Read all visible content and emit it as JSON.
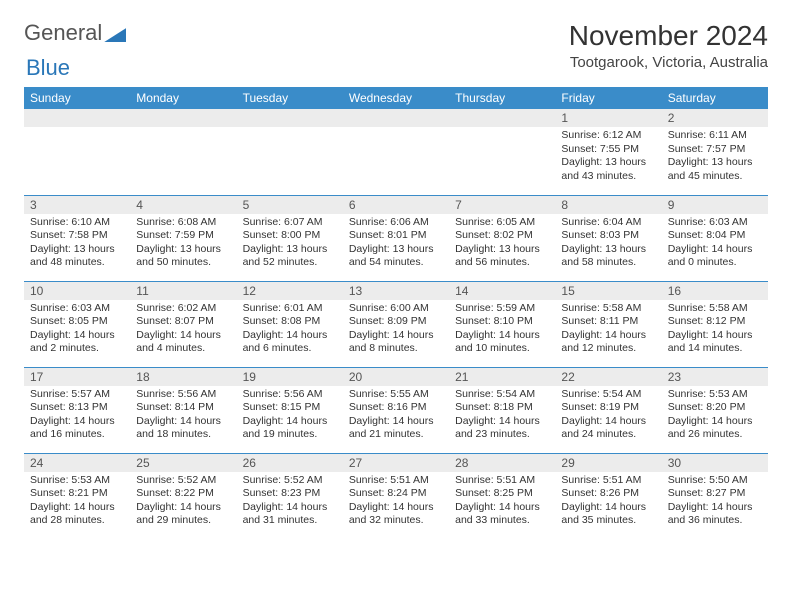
{
  "logo": {
    "part1": "General",
    "part2": "Blue"
  },
  "title": "November 2024",
  "location": "Tootgarook, Victoria, Australia",
  "colors": {
    "header_bg": "#3a8cc9",
    "header_text": "#ffffff",
    "daynum_bg": "#ececec",
    "border": "#3a8cc9",
    "accent": "#2a77b8"
  },
  "weekdays": [
    "Sunday",
    "Monday",
    "Tuesday",
    "Wednesday",
    "Thursday",
    "Friday",
    "Saturday"
  ],
  "weeks": [
    [
      {
        "blank": true
      },
      {
        "blank": true
      },
      {
        "blank": true
      },
      {
        "blank": true
      },
      {
        "blank": true
      },
      {
        "day": "1",
        "sunrise": "Sunrise: 6:12 AM",
        "sunset": "Sunset: 7:55 PM",
        "daylight": "Daylight: 13 hours and 43 minutes."
      },
      {
        "day": "2",
        "sunrise": "Sunrise: 6:11 AM",
        "sunset": "Sunset: 7:57 PM",
        "daylight": "Daylight: 13 hours and 45 minutes."
      }
    ],
    [
      {
        "day": "3",
        "sunrise": "Sunrise: 6:10 AM",
        "sunset": "Sunset: 7:58 PM",
        "daylight": "Daylight: 13 hours and 48 minutes."
      },
      {
        "day": "4",
        "sunrise": "Sunrise: 6:08 AM",
        "sunset": "Sunset: 7:59 PM",
        "daylight": "Daylight: 13 hours and 50 minutes."
      },
      {
        "day": "5",
        "sunrise": "Sunrise: 6:07 AM",
        "sunset": "Sunset: 8:00 PM",
        "daylight": "Daylight: 13 hours and 52 minutes."
      },
      {
        "day": "6",
        "sunrise": "Sunrise: 6:06 AM",
        "sunset": "Sunset: 8:01 PM",
        "daylight": "Daylight: 13 hours and 54 minutes."
      },
      {
        "day": "7",
        "sunrise": "Sunrise: 6:05 AM",
        "sunset": "Sunset: 8:02 PM",
        "daylight": "Daylight: 13 hours and 56 minutes."
      },
      {
        "day": "8",
        "sunrise": "Sunrise: 6:04 AM",
        "sunset": "Sunset: 8:03 PM",
        "daylight": "Daylight: 13 hours and 58 minutes."
      },
      {
        "day": "9",
        "sunrise": "Sunrise: 6:03 AM",
        "sunset": "Sunset: 8:04 PM",
        "daylight": "Daylight: 14 hours and 0 minutes."
      }
    ],
    [
      {
        "day": "10",
        "sunrise": "Sunrise: 6:03 AM",
        "sunset": "Sunset: 8:05 PM",
        "daylight": "Daylight: 14 hours and 2 minutes."
      },
      {
        "day": "11",
        "sunrise": "Sunrise: 6:02 AM",
        "sunset": "Sunset: 8:07 PM",
        "daylight": "Daylight: 14 hours and 4 minutes."
      },
      {
        "day": "12",
        "sunrise": "Sunrise: 6:01 AM",
        "sunset": "Sunset: 8:08 PM",
        "daylight": "Daylight: 14 hours and 6 minutes."
      },
      {
        "day": "13",
        "sunrise": "Sunrise: 6:00 AM",
        "sunset": "Sunset: 8:09 PM",
        "daylight": "Daylight: 14 hours and 8 minutes."
      },
      {
        "day": "14",
        "sunrise": "Sunrise: 5:59 AM",
        "sunset": "Sunset: 8:10 PM",
        "daylight": "Daylight: 14 hours and 10 minutes."
      },
      {
        "day": "15",
        "sunrise": "Sunrise: 5:58 AM",
        "sunset": "Sunset: 8:11 PM",
        "daylight": "Daylight: 14 hours and 12 minutes."
      },
      {
        "day": "16",
        "sunrise": "Sunrise: 5:58 AM",
        "sunset": "Sunset: 8:12 PM",
        "daylight": "Daylight: 14 hours and 14 minutes."
      }
    ],
    [
      {
        "day": "17",
        "sunrise": "Sunrise: 5:57 AM",
        "sunset": "Sunset: 8:13 PM",
        "daylight": "Daylight: 14 hours and 16 minutes."
      },
      {
        "day": "18",
        "sunrise": "Sunrise: 5:56 AM",
        "sunset": "Sunset: 8:14 PM",
        "daylight": "Daylight: 14 hours and 18 minutes."
      },
      {
        "day": "19",
        "sunrise": "Sunrise: 5:56 AM",
        "sunset": "Sunset: 8:15 PM",
        "daylight": "Daylight: 14 hours and 19 minutes."
      },
      {
        "day": "20",
        "sunrise": "Sunrise: 5:55 AM",
        "sunset": "Sunset: 8:16 PM",
        "daylight": "Daylight: 14 hours and 21 minutes."
      },
      {
        "day": "21",
        "sunrise": "Sunrise: 5:54 AM",
        "sunset": "Sunset: 8:18 PM",
        "daylight": "Daylight: 14 hours and 23 minutes."
      },
      {
        "day": "22",
        "sunrise": "Sunrise: 5:54 AM",
        "sunset": "Sunset: 8:19 PM",
        "daylight": "Daylight: 14 hours and 24 minutes."
      },
      {
        "day": "23",
        "sunrise": "Sunrise: 5:53 AM",
        "sunset": "Sunset: 8:20 PM",
        "daylight": "Daylight: 14 hours and 26 minutes."
      }
    ],
    [
      {
        "day": "24",
        "sunrise": "Sunrise: 5:53 AM",
        "sunset": "Sunset: 8:21 PM",
        "daylight": "Daylight: 14 hours and 28 minutes."
      },
      {
        "day": "25",
        "sunrise": "Sunrise: 5:52 AM",
        "sunset": "Sunset: 8:22 PM",
        "daylight": "Daylight: 14 hours and 29 minutes."
      },
      {
        "day": "26",
        "sunrise": "Sunrise: 5:52 AM",
        "sunset": "Sunset: 8:23 PM",
        "daylight": "Daylight: 14 hours and 31 minutes."
      },
      {
        "day": "27",
        "sunrise": "Sunrise: 5:51 AM",
        "sunset": "Sunset: 8:24 PM",
        "daylight": "Daylight: 14 hours and 32 minutes."
      },
      {
        "day": "28",
        "sunrise": "Sunrise: 5:51 AM",
        "sunset": "Sunset: 8:25 PM",
        "daylight": "Daylight: 14 hours and 33 minutes."
      },
      {
        "day": "29",
        "sunrise": "Sunrise: 5:51 AM",
        "sunset": "Sunset: 8:26 PM",
        "daylight": "Daylight: 14 hours and 35 minutes."
      },
      {
        "day": "30",
        "sunrise": "Sunrise: 5:50 AM",
        "sunset": "Sunset: 8:27 PM",
        "daylight": "Daylight: 14 hours and 36 minutes."
      }
    ]
  ]
}
